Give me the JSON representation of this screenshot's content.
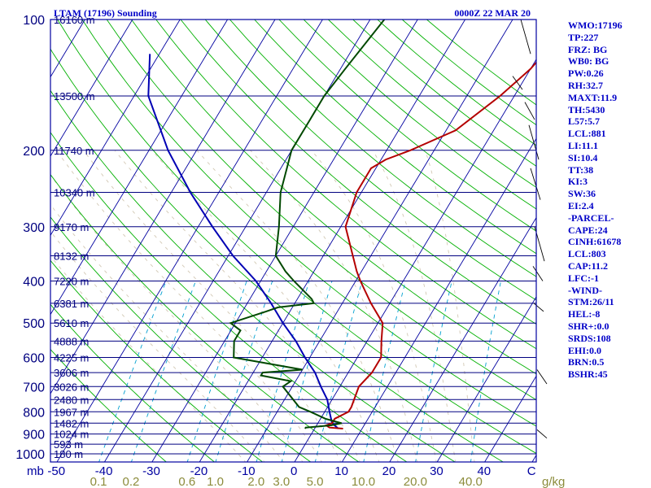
{
  "chart_data": {
    "type": "line",
    "title": "LTAM (17196) Sounding",
    "time": "0000Z 22 MAR 20",
    "x_axis_unit": "mb",
    "mixing_ratio_unit": "g/kg",
    "temperature_ticks": [
      "-50",
      "-40",
      "-30",
      "-20",
      "-10",
      "0",
      "10",
      "20",
      "30",
      "40",
      "C"
    ],
    "mixing_ratio_ticks": [
      "0.1",
      "0.2",
      "0.6",
      "1.0",
      "2.0",
      "3.0",
      "5.0",
      "10.0",
      "20.0",
      "40.0"
    ],
    "pressure_ticks": [
      "100",
      "200",
      "300",
      "400",
      "500",
      "600",
      "700",
      "800",
      "900",
      "1000"
    ],
    "height_labels": [
      {
        "p": 100,
        "label": "16160 m"
      },
      {
        "p": 150,
        "label": "13500 m"
      },
      {
        "p": 200,
        "label": "11740 m"
      },
      {
        "p": 250,
        "label": "10340 m"
      },
      {
        "p": 300,
        "label": "9170 m"
      },
      {
        "p": 350,
        "label": "8132 m"
      },
      {
        "p": 400,
        "label": "7220 m"
      },
      {
        "p": 450,
        "label": "6381 m"
      },
      {
        "p": 500,
        "label": "5610 m"
      },
      {
        "p": 550,
        "label": "4888 m"
      },
      {
        "p": 600,
        "label": "4225 m"
      },
      {
        "p": 650,
        "label": "3606 m"
      },
      {
        "p": 700,
        "label": "3026 m"
      },
      {
        "p": 750,
        "label": "2480 m"
      },
      {
        "p": 800,
        "label": "1967 m"
      },
      {
        "p": 850,
        "label": "1482 m"
      },
      {
        "p": 900,
        "label": "1024 m"
      },
      {
        "p": 950,
        "label": "593 m"
      },
      {
        "p": 1000,
        "label": "180 m"
      }
    ],
    "temperature_profile": [
      [
        875,
        6
      ],
      [
        870,
        3
      ],
      [
        860,
        2
      ],
      [
        850,
        3
      ],
      [
        830,
        3
      ],
      [
        800,
        5
      ],
      [
        780,
        5
      ],
      [
        700,
        4
      ],
      [
        650,
        5
      ],
      [
        600,
        5
      ],
      [
        550,
        3
      ],
      [
        500,
        1
      ],
      [
        450,
        -4
      ],
      [
        400,
        -9
      ],
      [
        380,
        -11
      ],
      [
        300,
        -19
      ],
      [
        250,
        -21
      ],
      [
        220,
        -21
      ],
      [
        210,
        -19
      ],
      [
        200,
        -15
      ],
      [
        180,
        -8
      ],
      [
        150,
        -3
      ],
      [
        130,
        0
      ],
      [
        100,
        3
      ]
    ],
    "dewpoint_profile": [
      [
        875,
        -2
      ],
      [
        870,
        -2
      ],
      [
        860,
        3
      ],
      [
        850,
        5
      ],
      [
        840,
        3
      ],
      [
        830,
        1
      ],
      [
        800,
        -3
      ],
      [
        780,
        -6
      ],
      [
        700,
        -12
      ],
      [
        680,
        -11
      ],
      [
        660,
        -18
      ],
      [
        650,
        -18
      ],
      [
        640,
        -10
      ],
      [
        600,
        -26
      ],
      [
        550,
        -28
      ],
      [
        520,
        -28
      ],
      [
        500,
        -31
      ],
      [
        470,
        -25
      ],
      [
        460,
        -23
      ],
      [
        450,
        -16
      ],
      [
        440,
        -17
      ],
      [
        400,
        -23
      ],
      [
        380,
        -26
      ],
      [
        350,
        -30
      ],
      [
        300,
        -33
      ],
      [
        250,
        -37
      ],
      [
        200,
        -40
      ],
      [
        170,
        -40
      ],
      [
        150,
        -40
      ],
      [
        130,
        -39
      ],
      [
        100,
        -37
      ]
    ],
    "parcel_profile": [
      [
        875,
        5
      ],
      [
        850,
        3
      ],
      [
        800,
        1
      ],
      [
        750,
        -1
      ],
      [
        700,
        -4
      ],
      [
        650,
        -7
      ],
      [
        600,
        -11
      ],
      [
        550,
        -15
      ],
      [
        500,
        -20
      ],
      [
        450,
        -25
      ],
      [
        400,
        -31
      ],
      [
        350,
        -39
      ],
      [
        300,
        -47
      ],
      [
        250,
        -56
      ],
      [
        200,
        -66
      ],
      [
        150,
        -77
      ],
      [
        120,
        -82
      ]
    ]
  },
  "indices": [
    "WMO:17196",
    "TP:227",
    "FRZ: BG",
    "WB0: BG",
    "PW:0.26",
    "RH:32.7",
    "MAXT:11.9",
    "TH:5430",
    "L57:5.7",
    "LCL:881",
    "LI:11.1",
    "SI:10.4",
    "TT:38",
    "KI:3",
    "SW:36",
    "EI:2.4",
    "-PARCEL-",
    "CAPE:24",
    "CINH:61678",
    "LCL:803",
    "CAP:11.2",
    "LFC:-1",
    "-WIND-",
    "STM:26/11",
    "HEL:-8",
    "SHR+:0.0",
    "SRDS:108",
    "EHI:0.0",
    "BRN:0.5",
    "BSHR:45"
  ],
  "colors": {
    "isobar": "#000080",
    "isotherm": "#0000a0",
    "dry_adiabat": "#00b000",
    "moist_adiabat": "#d2c8b4",
    "mixing_ratio": "#00a0d0",
    "temperature": "#b40000",
    "dewpoint": "#004800",
    "parcel": "#0000b4",
    "text": "#0000c8",
    "mixing_ratio_text": "#8c8c3c"
  }
}
